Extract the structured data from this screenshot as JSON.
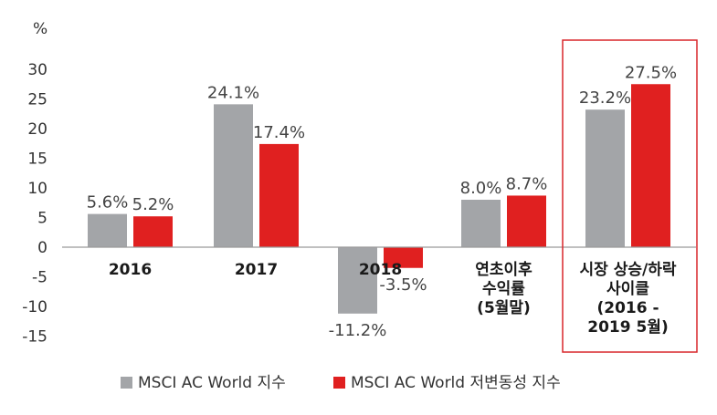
{
  "chart_data": {
    "type": "bar",
    "unit_label": "%",
    "ylim": [
      -15,
      30
    ],
    "yticks": [
      30,
      25,
      20,
      15,
      10,
      5,
      0,
      -5,
      -10,
      -15
    ],
    "grid": false,
    "legend_position": "bottom",
    "categories": [
      [
        "2016"
      ],
      [
        "2017"
      ],
      [
        "2018"
      ],
      [
        "연초이후",
        "수익률",
        "(5월말)"
      ],
      [
        "시장 상승/하락",
        "사이클",
        "(2016 -",
        "2019 5월)"
      ]
    ],
    "highlighted_category_index": 4,
    "series": [
      {
        "name": "MSCI AC World 지수",
        "color": "#a3a5a8",
        "values": [
          5.6,
          24.1,
          -11.2,
          8.0,
          23.2
        ],
        "labels": [
          "5.6%",
          "24.1%",
          "-11.2%",
          "8.0%",
          "23.2%"
        ]
      },
      {
        "name": "MSCI AC World 저변동성 지수",
        "color": "#e02020",
        "values": [
          5.2,
          17.4,
          -3.5,
          8.7,
          27.5
        ],
        "labels": [
          "5.2%",
          "17.4%",
          "-3.5%",
          "8.7%",
          "27.5%"
        ]
      }
    ],
    "highlight_color": "#d8262a"
  }
}
